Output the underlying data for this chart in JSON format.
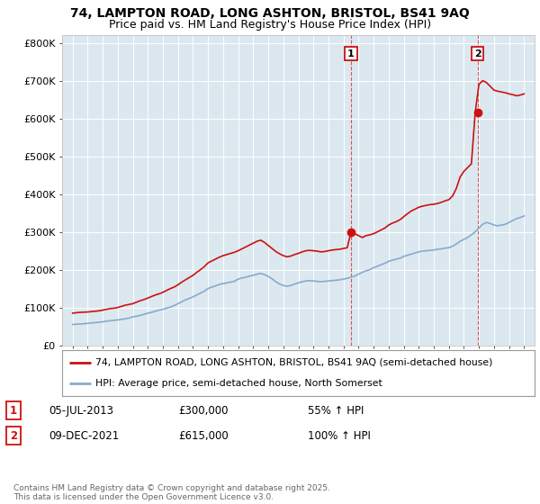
{
  "title_line1": "74, LAMPTON ROAD, LONG ASHTON, BRISTOL, BS41 9AQ",
  "title_line2": "Price paid vs. HM Land Registry's House Price Index (HPI)",
  "plot_bg_color": "#dce8f0",
  "ylim": [
    0,
    820000
  ],
  "xlim_left": 1994.3,
  "xlim_right": 2025.7,
  "yticks": [
    0,
    100000,
    200000,
    300000,
    400000,
    500000,
    600000,
    700000,
    800000
  ],
  "ytick_labels": [
    "£0",
    "£100K",
    "£200K",
    "£300K",
    "£400K",
    "£500K",
    "£600K",
    "£700K",
    "£800K"
  ],
  "legend_line1": "74, LAMPTON ROAD, LONG ASHTON, BRISTOL, BS41 9AQ (semi-detached house)",
  "legend_line2": "HPI: Average price, semi-detached house, North Somerset",
  "sale1_date": "05-JUL-2013",
  "sale1_price": "£300,000",
  "sale1_hpi": "55% ↑ HPI",
  "sale1_x": 2013.5,
  "sale1_y": 300000,
  "sale2_date": "09-DEC-2021",
  "sale2_price": "£615,000",
  "sale2_hpi": "100% ↑ HPI",
  "sale2_x": 2021.92,
  "sale2_y": 615000,
  "footer": "Contains HM Land Registry data © Crown copyright and database right 2025.\nThis data is licensed under the Open Government Licence v3.0.",
  "red_color": "#cc1111",
  "blue_color": "#88aacc",
  "hpi_x": [
    1995.0,
    1995.25,
    1995.5,
    1995.75,
    1996.0,
    1996.25,
    1996.5,
    1996.75,
    1997.0,
    1997.25,
    1997.5,
    1997.75,
    1998.0,
    1998.25,
    1998.5,
    1998.75,
    1999.0,
    1999.25,
    1999.5,
    1999.75,
    2000.0,
    2000.25,
    2000.5,
    2000.75,
    2001.0,
    2001.25,
    2001.5,
    2001.75,
    2002.0,
    2002.25,
    2002.5,
    2002.75,
    2003.0,
    2003.25,
    2003.5,
    2003.75,
    2004.0,
    2004.25,
    2004.5,
    2004.75,
    2005.0,
    2005.25,
    2005.5,
    2005.75,
    2006.0,
    2006.25,
    2006.5,
    2006.75,
    2007.0,
    2007.25,
    2007.5,
    2007.75,
    2008.0,
    2008.25,
    2008.5,
    2008.75,
    2009.0,
    2009.25,
    2009.5,
    2009.75,
    2010.0,
    2010.25,
    2010.5,
    2010.75,
    2011.0,
    2011.25,
    2011.5,
    2011.75,
    2012.0,
    2012.25,
    2012.5,
    2012.75,
    2013.0,
    2013.25,
    2013.5,
    2013.75,
    2014.0,
    2014.25,
    2014.5,
    2014.75,
    2015.0,
    2015.25,
    2015.5,
    2015.75,
    2016.0,
    2016.25,
    2016.5,
    2016.75,
    2017.0,
    2017.25,
    2017.5,
    2017.75,
    2018.0,
    2018.25,
    2018.5,
    2018.75,
    2019.0,
    2019.25,
    2019.5,
    2019.75,
    2020.0,
    2020.25,
    2020.5,
    2020.75,
    2021.0,
    2021.25,
    2021.5,
    2021.75,
    2022.0,
    2022.25,
    2022.5,
    2022.75,
    2023.0,
    2023.25,
    2023.5,
    2023.75,
    2024.0,
    2024.25,
    2024.5,
    2024.75,
    2025.0
  ],
  "hpi_y": [
    55000,
    55500,
    56000,
    57000,
    58000,
    59000,
    60000,
    61000,
    62000,
    63500,
    65000,
    66000,
    67000,
    68500,
    70000,
    72000,
    75000,
    77000,
    79000,
    82000,
    85000,
    87000,
    90000,
    93000,
    95000,
    98000,
    101000,
    105000,
    110000,
    115000,
    120000,
    124000,
    128000,
    133000,
    138000,
    143000,
    150000,
    154000,
    157000,
    161000,
    163000,
    165000,
    167000,
    169000,
    175000,
    178000,
    180000,
    183000,
    185000,
    188000,
    190000,
    187000,
    182000,
    176000,
    168000,
    162000,
    158000,
    156000,
    158000,
    162000,
    165000,
    168000,
    170000,
    171000,
    170000,
    169000,
    168000,
    169000,
    170000,
    171000,
    172000,
    173000,
    175000,
    177000,
    180000,
    183000,
    188000,
    193000,
    197000,
    200000,
    205000,
    209000,
    213000,
    217000,
    222000,
    225000,
    228000,
    230000,
    235000,
    238000,
    241000,
    244000,
    247000,
    249000,
    250000,
    251000,
    252000,
    254000,
    255000,
    257000,
    258000,
    262000,
    268000,
    275000,
    280000,
    285000,
    292000,
    300000,
    310000,
    320000,
    325000,
    322000,
    318000,
    316000,
    318000,
    320000,
    325000,
    330000,
    335000,
    338000,
    342000
  ],
  "prop_x": [
    1995.0,
    1995.25,
    1995.5,
    1995.75,
    1996.0,
    1996.25,
    1996.5,
    1996.75,
    1997.0,
    1997.25,
    1997.5,
    1997.75,
    1998.0,
    1998.25,
    1998.5,
    1998.75,
    1999.0,
    1999.25,
    1999.5,
    1999.75,
    2000.0,
    2000.25,
    2000.5,
    2000.75,
    2001.0,
    2001.25,
    2001.5,
    2001.75,
    2002.0,
    2002.25,
    2002.5,
    2002.75,
    2003.0,
    2003.25,
    2003.5,
    2003.75,
    2004.0,
    2004.25,
    2004.5,
    2004.75,
    2005.0,
    2005.25,
    2005.5,
    2005.75,
    2006.0,
    2006.25,
    2006.5,
    2006.75,
    2007.0,
    2007.25,
    2007.5,
    2007.75,
    2008.0,
    2008.25,
    2008.5,
    2008.75,
    2009.0,
    2009.25,
    2009.5,
    2009.75,
    2010.0,
    2010.25,
    2010.5,
    2010.75,
    2011.0,
    2011.25,
    2011.5,
    2011.75,
    2012.0,
    2012.25,
    2012.5,
    2012.75,
    2013.0,
    2013.25,
    2013.5,
    2013.75,
    2014.0,
    2014.25,
    2014.5,
    2014.75,
    2015.0,
    2015.25,
    2015.5,
    2015.75,
    2016.0,
    2016.25,
    2016.5,
    2016.75,
    2017.0,
    2017.25,
    2017.5,
    2017.75,
    2018.0,
    2018.25,
    2018.5,
    2018.75,
    2019.0,
    2019.25,
    2019.5,
    2019.75,
    2020.0,
    2020.25,
    2020.5,
    2020.75,
    2021.0,
    2021.25,
    2021.5,
    2021.75,
    2022.0,
    2022.25,
    2022.5,
    2022.75,
    2023.0,
    2023.25,
    2023.5,
    2023.75,
    2024.0,
    2024.25,
    2024.5,
    2024.75,
    2025.0
  ],
  "prop_y": [
    85000,
    86000,
    87000,
    87500,
    88000,
    89000,
    90000,
    91000,
    93000,
    95000,
    97000,
    98000,
    100000,
    103000,
    106000,
    108000,
    110000,
    114000,
    118000,
    121000,
    125000,
    129000,
    133000,
    136000,
    140000,
    145000,
    150000,
    154000,
    160000,
    167000,
    173000,
    179000,
    185000,
    193000,
    200000,
    208000,
    218000,
    223000,
    228000,
    233000,
    237000,
    240000,
    243000,
    246000,
    250000,
    255000,
    260000,
    265000,
    270000,
    275000,
    278000,
    272000,
    264000,
    256000,
    248000,
    242000,
    237000,
    234000,
    236000,
    240000,
    243000,
    247000,
    250000,
    251000,
    250000,
    249000,
    247000,
    248000,
    250000,
    252000,
    253000,
    254000,
    256000,
    258000,
    300000,
    295000,
    290000,
    285000,
    290000,
    292000,
    295000,
    300000,
    305000,
    310000,
    318000,
    323000,
    327000,
    332000,
    340000,
    348000,
    355000,
    360000,
    365000,
    368000,
    370000,
    372000,
    373000,
    375000,
    378000,
    382000,
    385000,
    395000,
    415000,
    445000,
    460000,
    470000,
    480000,
    615000,
    690000,
    700000,
    695000,
    685000,
    675000,
    672000,
    670000,
    668000,
    665000,
    663000,
    660000,
    662000,
    665000
  ]
}
